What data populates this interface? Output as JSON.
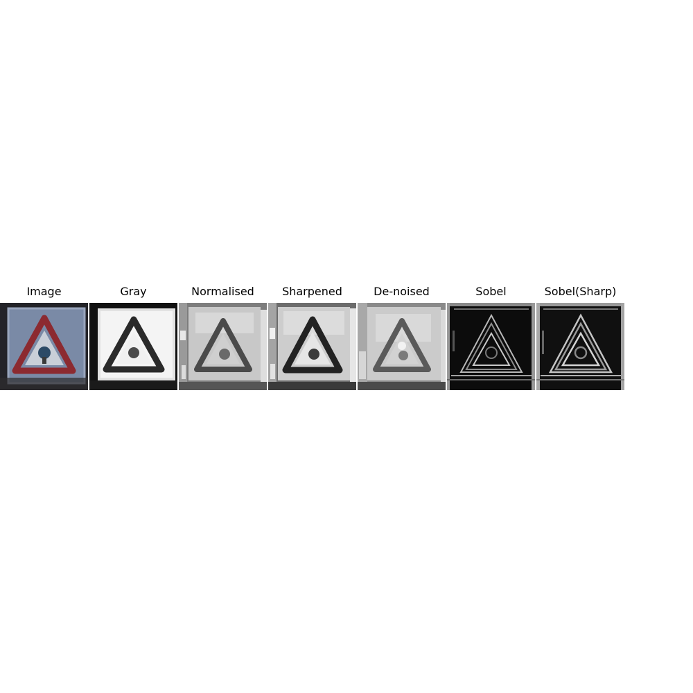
{
  "figure": {
    "panels": [
      {
        "title": "Image",
        "variant": "color"
      },
      {
        "title": "Gray",
        "variant": "gray"
      },
      {
        "title": "Normalised",
        "variant": "normalised"
      },
      {
        "title": "Sharpened",
        "variant": "sharpened"
      },
      {
        "title": "De-noised",
        "variant": "denoised"
      },
      {
        "title": "Sobel",
        "variant": "sobel"
      },
      {
        "title": "Sobel(Sharp)",
        "variant": "sobel-sharp"
      }
    ]
  }
}
